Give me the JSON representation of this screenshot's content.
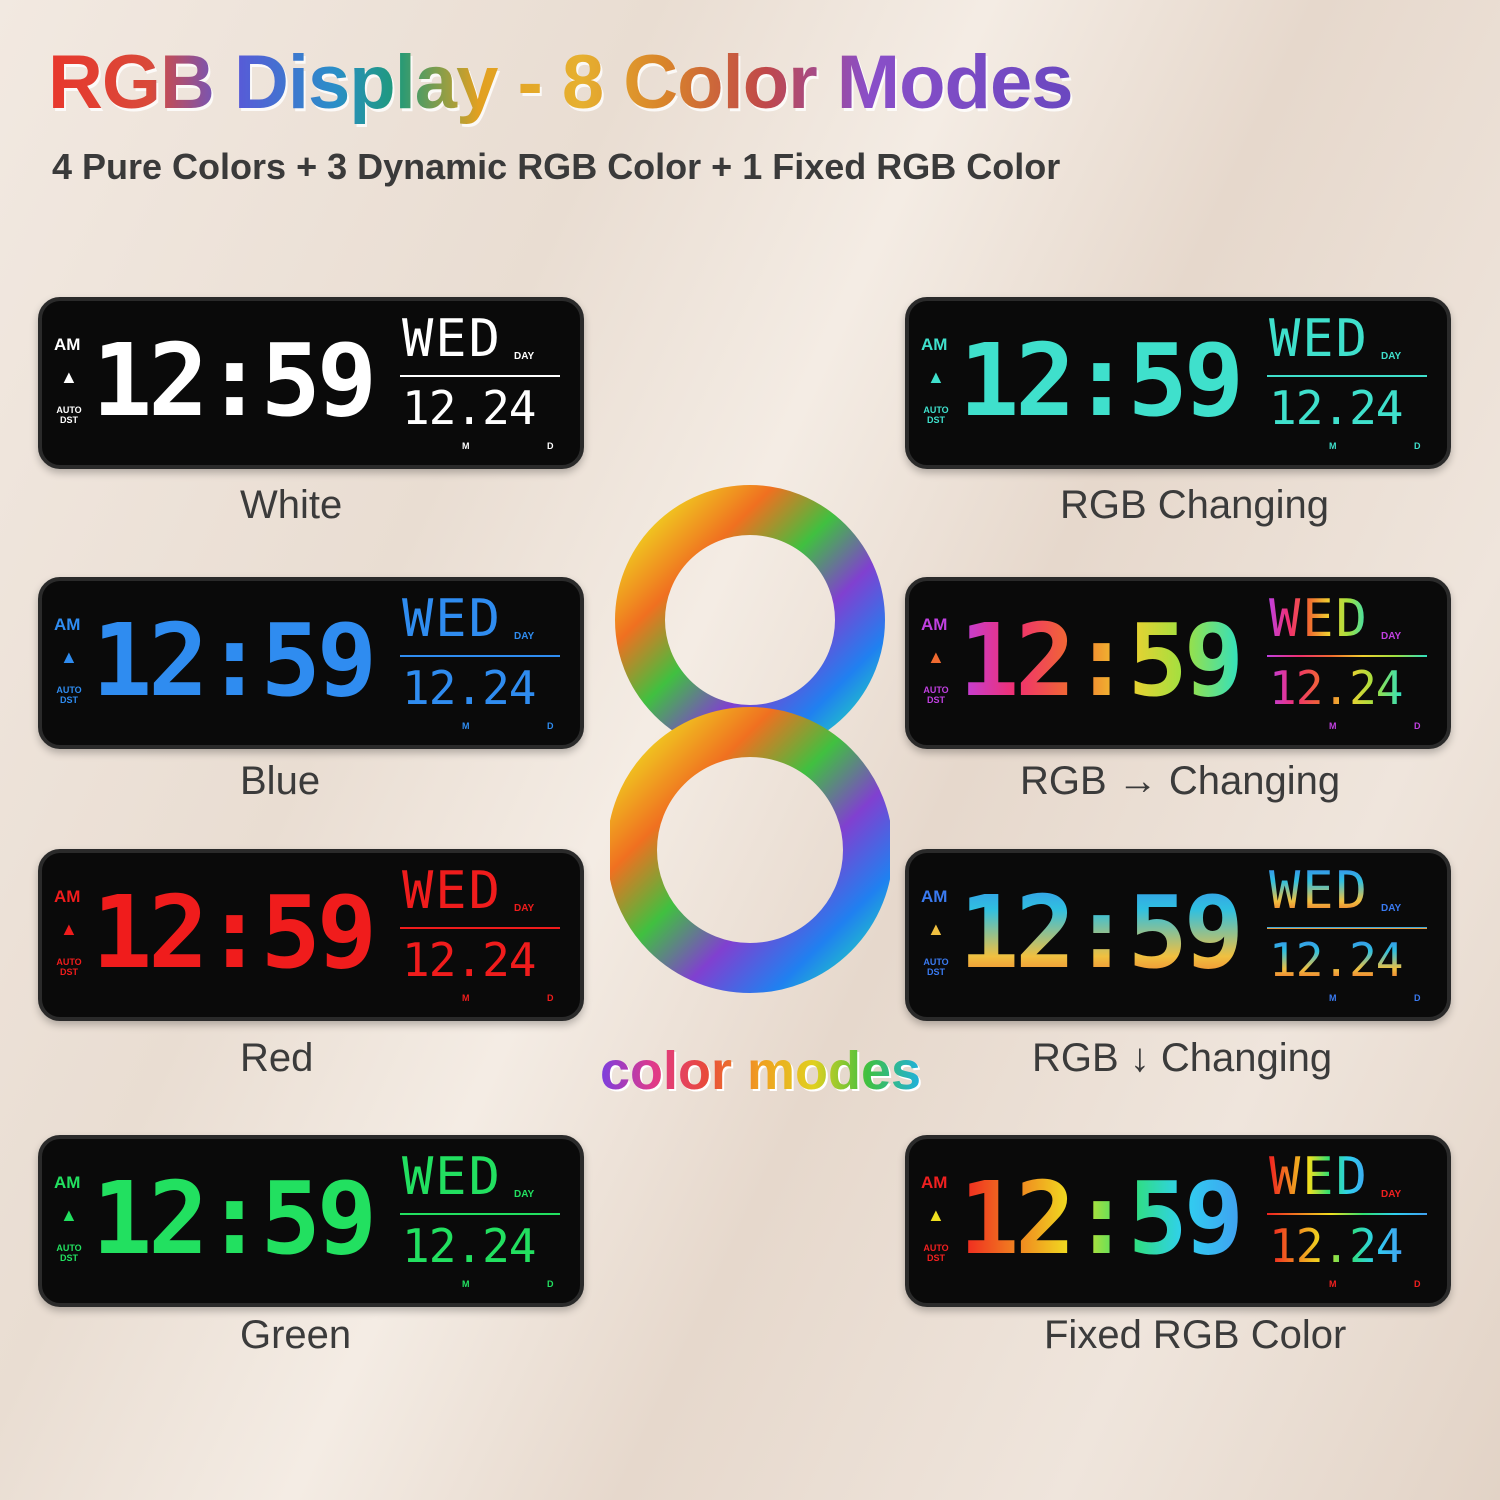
{
  "header": {
    "title": "RGB Display - 8 Color Modes",
    "subtitle": "4 Pure Colors + 3 Dynamic RGB Color + 1 Fixed RGB Color"
  },
  "center": {
    "digit": "8",
    "caption": "color modes"
  },
  "clock_face": {
    "ampm": "AM",
    "time": "12:59",
    "day": "WED",
    "day_label": "DAY",
    "date": "12.24",
    "month_label": "M",
    "date_label": "D",
    "dst": "AUTO DST"
  },
  "modes": [
    {
      "label": "White",
      "color": "#ffffff",
      "style": "solid"
    },
    {
      "label": "Blue",
      "color": "#2f8cf0",
      "style": "solid"
    },
    {
      "label": "Red",
      "color": "#f01c1c",
      "style": "solid"
    },
    {
      "label": "Green",
      "color": "#22e060",
      "style": "solid"
    },
    {
      "label": "RGB Changing",
      "color": "#3fe0cc",
      "style": "solid"
    },
    {
      "label": "RGB → Changing",
      "colors": [
        "#c040e0",
        "#f03070",
        "#f06a30",
        "#f0d030",
        "#a0e040",
        "#30e0c0"
      ],
      "style": "horizontal"
    },
    {
      "label": "RGB ↓ Changing",
      "colors": [
        "#3a7af0",
        "#30c0e0",
        "#f0c040",
        "#f04020"
      ],
      "style": "vertical"
    },
    {
      "label": "Fixed RGB Color",
      "colors": [
        "#f02020",
        "#f08020",
        "#f0e020",
        "#30e070",
        "#30d0f0",
        "#40a0f0"
      ],
      "style": "horizontal"
    }
  ]
}
